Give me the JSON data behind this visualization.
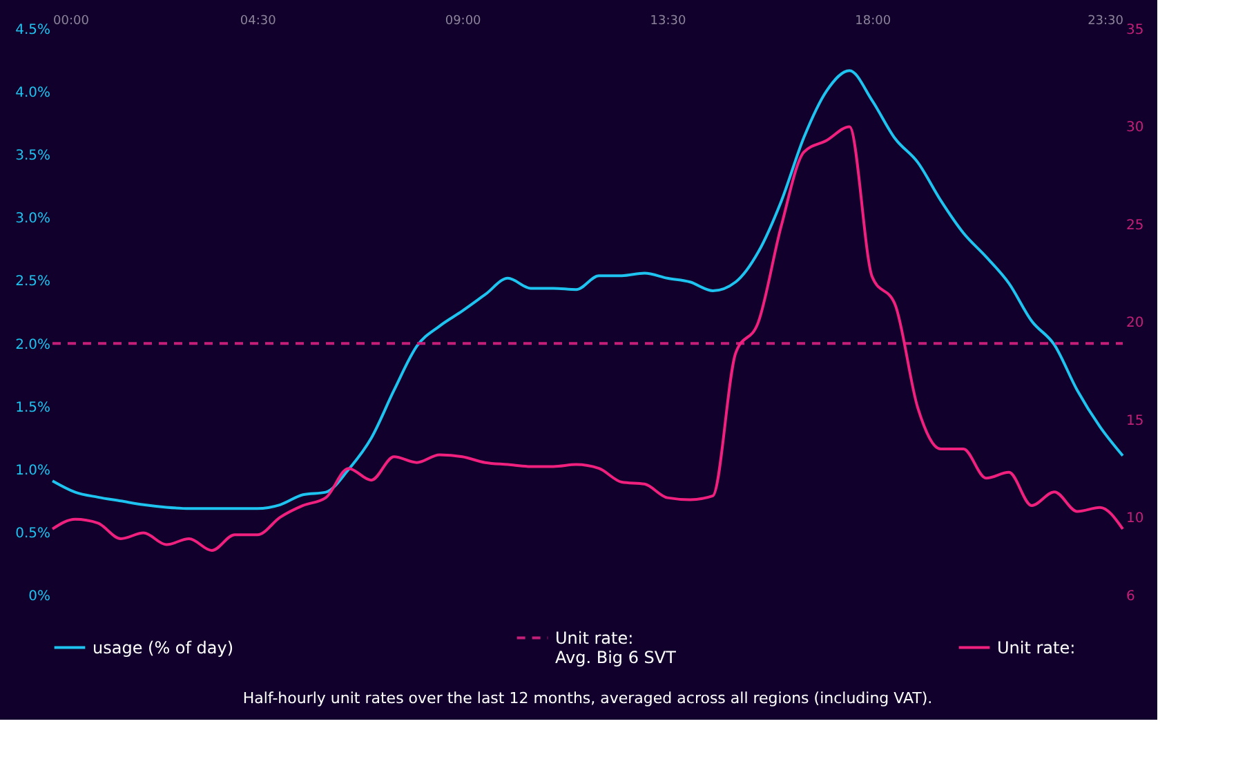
{
  "chart_data": {
    "type": "line",
    "annotations": [
      "Half-hourly unit rates over the last 12 months, averaged across all regions (including VAT)."
    ],
    "x": [
      0,
      0.5,
      1,
      1.5,
      2,
      2.5,
      3,
      3.5,
      4,
      4.5,
      5,
      5.5,
      6,
      6.5,
      7,
      7.5,
      8,
      8.5,
      9,
      9.5,
      10,
      10.5,
      11,
      11.5,
      12,
      12.5,
      13,
      13.5,
      14,
      14.5,
      15,
      15.5,
      16,
      16.5,
      17,
      17.5,
      18,
      18.5,
      19,
      19.5,
      20,
      20.5,
      21,
      21.5,
      22,
      22.5,
      23,
      23.5
    ],
    "xlim": [
      0,
      23.5
    ],
    "xticks": [
      {
        "value": 0,
        "label": "00:00"
      },
      {
        "value": 4.5,
        "label": "04:30"
      },
      {
        "value": 9,
        "label": "09:00"
      },
      {
        "value": 13.5,
        "label": "13:30"
      },
      {
        "value": 18,
        "label": "18:00"
      },
      {
        "value": 23.5,
        "label": "23:30"
      }
    ],
    "ylim": [
      0,
      4.5
    ],
    "yticks": [
      {
        "value": 0,
        "label": "0%"
      },
      {
        "value": 0.5,
        "label": "0.5%"
      },
      {
        "value": 1,
        "label": "1.0%"
      },
      {
        "value": 1.5,
        "label": "1.5%"
      },
      {
        "value": 2,
        "label": "2.0%"
      },
      {
        "value": 2.5,
        "label": "2.5%"
      },
      {
        "value": 3,
        "label": "3.0%"
      },
      {
        "value": 3.5,
        "label": "3.5%"
      },
      {
        "value": 4,
        "label": "4.0%"
      },
      {
        "value": 4.5,
        "label": "4.5%"
      }
    ],
    "y2lim": [
      6,
      35
    ],
    "y2ticks": [
      6,
      10,
      15,
      20,
      25,
      30,
      35
    ],
    "grid": false,
    "legend": "bottom",
    "marker": "none",
    "series": [
      {
        "name": "usage (% of day)",
        "color": "#1ec3ef",
        "axis": "y",
        "line_style": "solid",
        "values": [
          0.91,
          0.82,
          0.78,
          0.75,
          0.72,
          0.7,
          0.69,
          0.69,
          0.69,
          0.69,
          0.72,
          0.8,
          0.82,
          1.0,
          1.25,
          1.63,
          1.98,
          2.14,
          2.26,
          2.39,
          2.52,
          2.44,
          2.44,
          2.43,
          2.54,
          2.54,
          2.56,
          2.52,
          2.49,
          2.42,
          2.49,
          2.73,
          3.13,
          3.64,
          4.01,
          4.17,
          3.93,
          3.63,
          3.44,
          3.14,
          2.88,
          2.69,
          2.48,
          2.18,
          1.99,
          1.63,
          1.34,
          1.11
        ]
      },
      {
        "name": "Unit rate:\nAvg. Big 6 SVT",
        "color": "#c41f78",
        "axis": "y2",
        "line_style": "dashed",
        "values": [
          18.9,
          18.9,
          18.9,
          18.9,
          18.9,
          18.9,
          18.9,
          18.9,
          18.9,
          18.9,
          18.9,
          18.9,
          18.9,
          18.9,
          18.9,
          18.9,
          18.9,
          18.9,
          18.9,
          18.9,
          18.9,
          18.9,
          18.9,
          18.9,
          18.9,
          18.9,
          18.9,
          18.9,
          18.9,
          18.9,
          18.9,
          18.9,
          18.9,
          18.9,
          18.9,
          18.9,
          18.9,
          18.9,
          18.9,
          18.9,
          18.9,
          18.9,
          18.9,
          18.9,
          18.9,
          18.9,
          18.9,
          18.9
        ]
      },
      {
        "name": "Unit rate:",
        "color": "#f0207f",
        "axis": "y2",
        "line_style": "solid",
        "values": [
          9.4,
          9.9,
          9.7,
          8.9,
          9.2,
          8.6,
          8.9,
          8.3,
          9.1,
          9.1,
          10.0,
          10.6,
          11.0,
          12.5,
          11.9,
          13.1,
          12.8,
          13.2,
          13.1,
          12.8,
          12.7,
          12.6,
          12.6,
          12.7,
          12.5,
          11.8,
          11.7,
          11.0,
          10.9,
          11.1,
          18.4,
          20.0,
          24.9,
          28.7,
          29.3,
          30.0,
          22.3,
          20.9,
          15.6,
          13.5,
          13.5,
          12.0,
          12.3,
          10.6,
          11.3,
          10.3,
          10.5,
          9.4
        ]
      }
    ]
  }
}
